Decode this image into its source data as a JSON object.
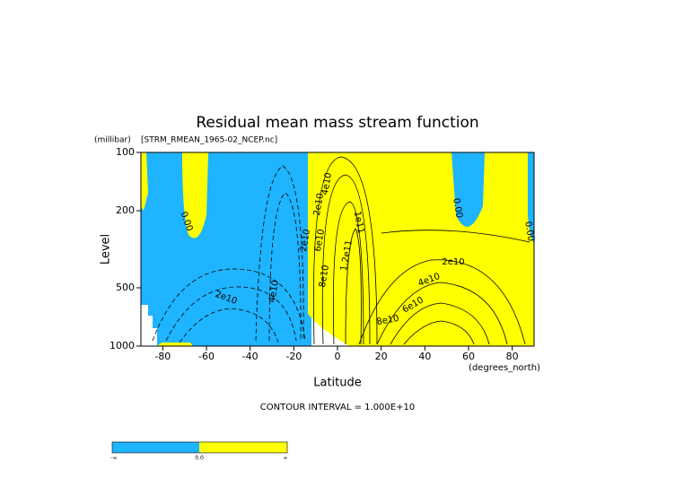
{
  "chart_data": {
    "type": "contour",
    "title": "Residual mean mass stream function",
    "subtitle": "[STRM_RMEAN_1965-02_NCEP.nc]",
    "xlabel": "Latitude",
    "ylabel": "Level",
    "x_unit": "(degrees_north)",
    "y_unit": "(millibar)",
    "xlim": [
      -90,
      90
    ],
    "xticks": [
      -80,
      -60,
      -40,
      -20,
      0,
      20,
      40,
      60,
      80
    ],
    "ylim": [
      1000,
      100
    ],
    "yticks": [
      100,
      200,
      500,
      1000
    ],
    "y_log_scale": true,
    "contour_labels": [
      "0.00",
      "0.00",
      "0.00",
      "2e10",
      "4e10",
      "6e10",
      "1e11",
      "1.2e11",
      "8e10",
      "2e10",
      "4e10",
      "6e10",
      "8e10",
      "2e10",
      "4e10",
      "2e10"
    ],
    "footnote": "CONTOUR INTERVAL = 1.000E+10",
    "negative_color": "#1eb4ff",
    "positive_color": "#ffff00",
    "colorbar_labels": [
      "-∞",
      "0.0",
      "∞"
    ]
  }
}
